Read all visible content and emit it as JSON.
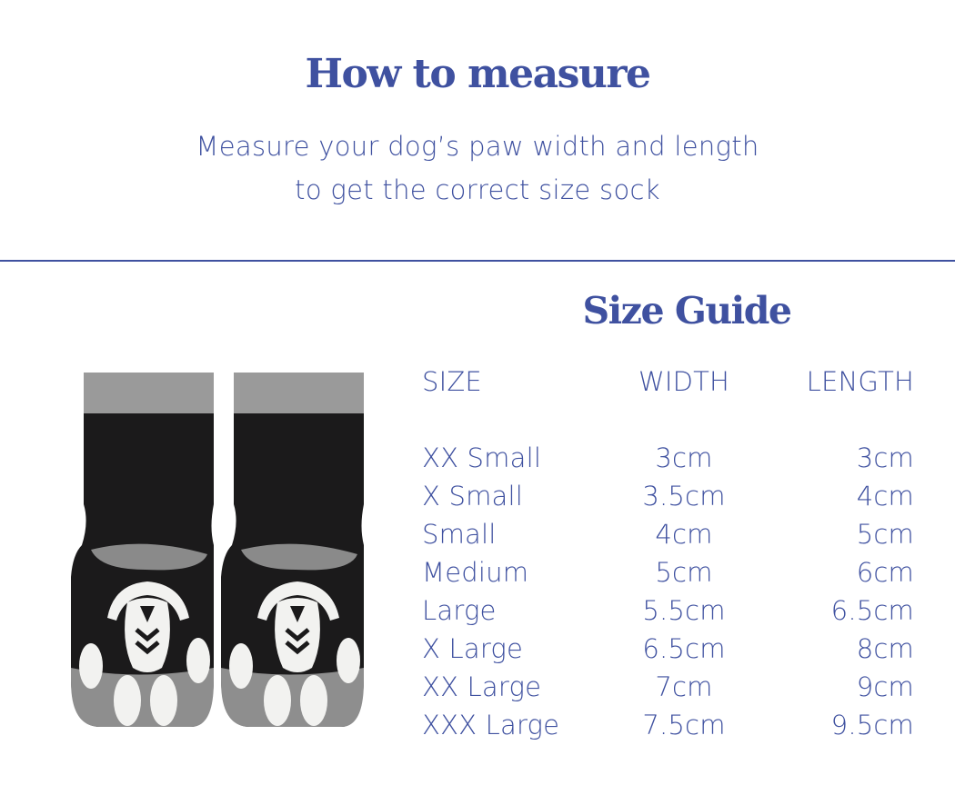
{
  "header": {
    "title": "How to measure",
    "subtitle_lines": [
      "Measure your dog’s paw width and length",
      "to get the correct size sock"
    ]
  },
  "size_guide": {
    "title": "Size Guide",
    "columns": [
      "SIZE",
      "WIDTH",
      "LENGTH"
    ],
    "rows": [
      {
        "size": "XX Small",
        "width": "3cm",
        "length": "3cm"
      },
      {
        "size": "X Small",
        "width": "3.5cm",
        "length": "4cm"
      },
      {
        "size": "Small",
        "width": "4cm",
        "length": "5cm"
      },
      {
        "size": "Medium",
        "width": "5cm",
        "length": "6cm"
      },
      {
        "size": "Large",
        "width": "5.5cm",
        "length": "6.5cm"
      },
      {
        "size": "X Large",
        "width": "6.5cm",
        "length": "8cm"
      },
      {
        "size": "XX Large",
        "width": "7cm",
        "length": "9cm"
      },
      {
        "size": "XXX Large",
        "width": "7.5cm",
        "length": "9.5cm"
      }
    ]
  },
  "colors": {
    "accent": "#3f51a0",
    "sock_black": "#1b1a1b",
    "sock_grey": "#8e8e8e"
  }
}
